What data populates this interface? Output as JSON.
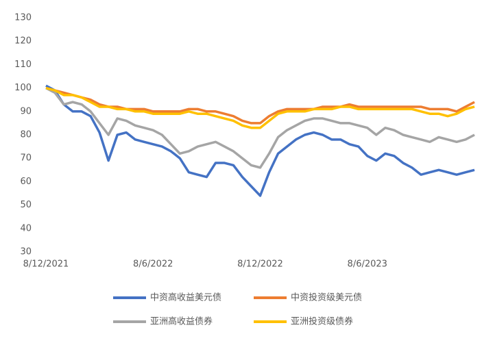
{
  "chart_data": {
    "type": "line",
    "categories": [
      "8/12/2021",
      null,
      null,
      null,
      null,
      null,
      null,
      null,
      null,
      null,
      null,
      null,
      "8/6/2022",
      null,
      null,
      null,
      null,
      null,
      null,
      null,
      null,
      null,
      null,
      null,
      "8/12/2022",
      null,
      null,
      null,
      null,
      null,
      null,
      null,
      null,
      null,
      null,
      null,
      "8/6/2023",
      null,
      null,
      null,
      null,
      null,
      null,
      null,
      null,
      null,
      null,
      null,
      null
    ],
    "series": [
      {
        "name": "中资高收益美元债",
        "color": "#4472c4",
        "values": [
          101,
          99,
          93,
          90,
          90,
          88,
          81,
          69,
          80,
          81,
          78,
          77,
          76,
          75,
          73,
          70,
          64,
          63,
          62,
          68,
          68,
          67,
          62,
          58,
          54,
          64,
          72,
          75,
          78,
          80,
          81,
          80,
          78,
          78,
          76,
          75,
          71,
          69,
          72,
          71,
          68,
          66,
          63,
          64,
          65,
          64,
          63,
          64,
          65
        ]
      },
      {
        "name": "中资投资级美元债",
        "color": "#ed7d31",
        "values": [
          100,
          99,
          98,
          97,
          96,
          95,
          93,
          92,
          92,
          91,
          91,
          91,
          90,
          90,
          90,
          90,
          91,
          91,
          90,
          90,
          89,
          88,
          86,
          85,
          85,
          88,
          90,
          91,
          91,
          91,
          91,
          92,
          92,
          92,
          93,
          92,
          92,
          92,
          92,
          92,
          92,
          92,
          92,
          91,
          91,
          91,
          90,
          92,
          94
        ]
      },
      {
        "name": "亚洲高收益债券",
        "color": "#a5a5a5",
        "values": [
          100,
          98,
          93,
          94,
          93,
          90,
          85,
          80,
          87,
          86,
          84,
          83,
          82,
          80,
          76,
          72,
          73,
          75,
          76,
          77,
          75,
          73,
          70,
          67,
          66,
          72,
          79,
          82,
          84,
          86,
          87,
          87,
          86,
          85,
          85,
          84,
          83,
          80,
          83,
          82,
          80,
          79,
          78,
          77,
          79,
          78,
          77,
          78,
          80
        ]
      },
      {
        "name": "亚洲投资级债券",
        "color": "#ffc000",
        "values": [
          100,
          99,
          97,
          97,
          96,
          94,
          92,
          92,
          91,
          91,
          90,
          90,
          89,
          89,
          89,
          89,
          90,
          89,
          89,
          88,
          87,
          86,
          84,
          83,
          83,
          86,
          89,
          90,
          90,
          90,
          91,
          91,
          91,
          92,
          92,
          91,
          91,
          91,
          91,
          91,
          91,
          91,
          90,
          89,
          89,
          88,
          89,
          91,
          92
        ]
      }
    ],
    "ylim": [
      30,
      130
    ],
    "yticks": [
      30,
      40,
      50,
      60,
      70,
      80,
      90,
      100,
      110,
      120,
      130
    ],
    "grid": false
  }
}
